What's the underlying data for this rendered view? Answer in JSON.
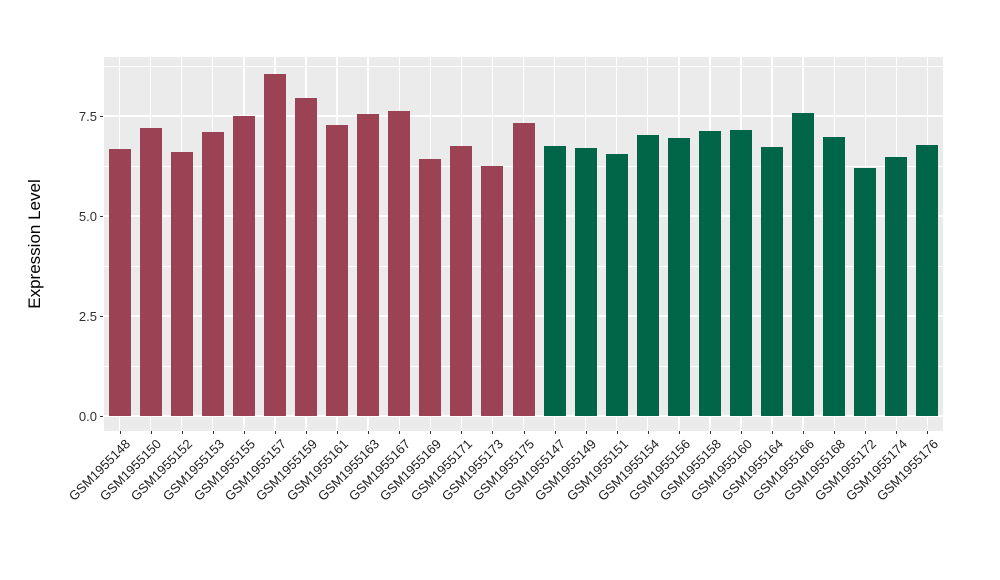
{
  "chart_data": {
    "type": "bar",
    "title": "",
    "xlabel": "",
    "ylabel": "Expression Level",
    "ylim": [
      0,
      8.97
    ],
    "yticks": [
      0.0,
      2.5,
      5.0,
      7.5
    ],
    "ytick_labels": [
      "0.0",
      "2.5",
      "5.0",
      "7.5"
    ],
    "yticks_minor": [
      1.25,
      3.75,
      6.25,
      8.75
    ],
    "grid": "on",
    "legend": "none",
    "panel_background": "#EBEBEB",
    "gridline_color": "#FFFFFF",
    "group_colors": {
      "groupA": "#9B4254",
      "groupB": "#016648"
    },
    "categories": [
      "GSM1955148",
      "GSM1955150",
      "GSM1955152",
      "GSM1955153",
      "GSM1955155",
      "GSM1955157",
      "GSM1955159",
      "GSM1955161",
      "GSM1955163",
      "GSM1955167",
      "GSM1955169",
      "GSM1955171",
      "GSM1955173",
      "GSM1955175",
      "GSM1955147",
      "GSM1955149",
      "GSM1955151",
      "GSM1955154",
      "GSM1955156",
      "GSM1955158",
      "GSM1955160",
      "GSM1955164",
      "GSM1955166",
      "GSM1955168",
      "GSM1955172",
      "GSM1955174",
      "GSM1955176"
    ],
    "values": [
      6.68,
      7.2,
      6.6,
      7.1,
      7.5,
      8.55,
      7.95,
      7.28,
      7.55,
      7.63,
      6.43,
      6.75,
      6.25,
      7.33,
      6.75,
      6.7,
      6.55,
      7.03,
      6.95,
      7.13,
      7.15,
      6.73,
      7.58,
      6.98,
      6.2,
      6.48,
      6.78
    ],
    "groups": [
      "groupA",
      "groupA",
      "groupA",
      "groupA",
      "groupA",
      "groupA",
      "groupA",
      "groupA",
      "groupA",
      "groupA",
      "groupA",
      "groupA",
      "groupA",
      "groupA",
      "groupB",
      "groupB",
      "groupB",
      "groupB",
      "groupB",
      "groupB",
      "groupB",
      "groupB",
      "groupB",
      "groupB",
      "groupB",
      "groupB",
      "groupB"
    ]
  }
}
